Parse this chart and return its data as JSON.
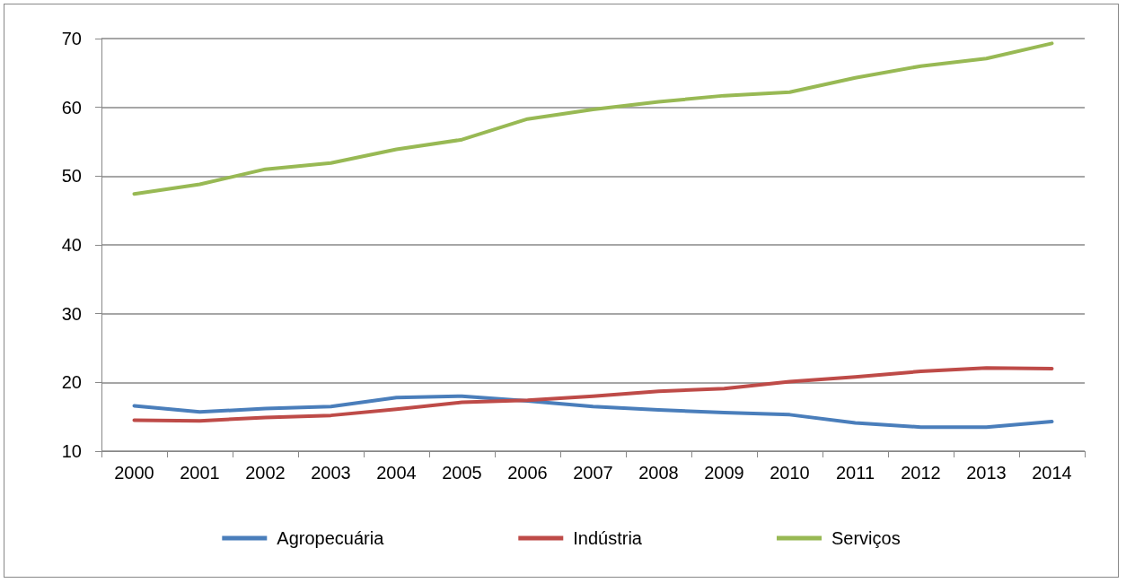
{
  "chart_data": {
    "type": "line",
    "categories": [
      "2000",
      "2001",
      "2002",
      "2003",
      "2004",
      "2005",
      "2006",
      "2007",
      "2008",
      "2009",
      "2010",
      "2011",
      "2012",
      "2013",
      "2014"
    ],
    "series": [
      {
        "name": "Agropecuária",
        "color": "#4a7ebb",
        "values": [
          16.6,
          15.7,
          16.2,
          16.5,
          17.8,
          18.0,
          17.3,
          16.5,
          16.0,
          15.6,
          15.3,
          14.1,
          13.5,
          13.5,
          14.3
        ]
      },
      {
        "name": "Indústria",
        "color": "#be4b48",
        "values": [
          14.5,
          14.4,
          14.9,
          15.2,
          16.1,
          17.1,
          17.4,
          18.0,
          18.7,
          19.1,
          20.1,
          20.8,
          21.6,
          22.1,
          22.0
        ]
      },
      {
        "name": "Serviços",
        "color": "#98b954",
        "values": [
          47.4,
          48.8,
          51.0,
          51.9,
          53.9,
          55.3,
          58.3,
          59.7,
          60.8,
          61.7,
          62.2,
          64.3,
          66.0,
          67.1,
          69.3
        ]
      }
    ],
    "ylim": [
      10,
      70
    ],
    "yticks": [
      10,
      20,
      30,
      40,
      50,
      60,
      70
    ],
    "grid": "y",
    "legend": "bottom",
    "marker": "none",
    "line_style": "solid"
  }
}
